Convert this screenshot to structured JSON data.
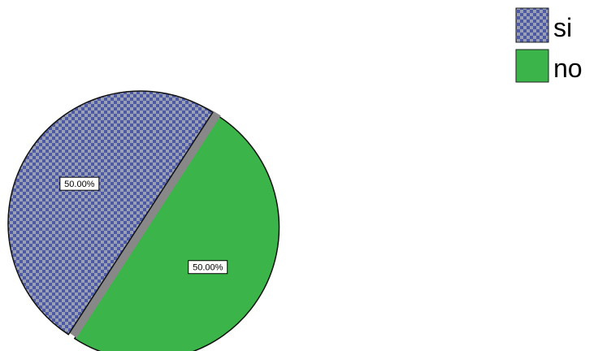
{
  "chart_data": {
    "type": "pie",
    "categories": [
      "si",
      "no"
    ],
    "values": [
      50.0,
      50.0
    ],
    "labels": [
      "50.00%",
      "50.00%"
    ],
    "legend": {
      "position": "top-right",
      "entries": [
        "si",
        "no"
      ]
    },
    "slices": [
      {
        "category": "si",
        "value": 50.0,
        "label": "50.00%",
        "color": "#5566aa",
        "pattern": "checkered",
        "exploded": false
      },
      {
        "category": "no",
        "value": 50.0,
        "label": "50.00%",
        "color": "#3bb54a",
        "pattern": "solid",
        "exploded": true
      }
    ]
  }
}
